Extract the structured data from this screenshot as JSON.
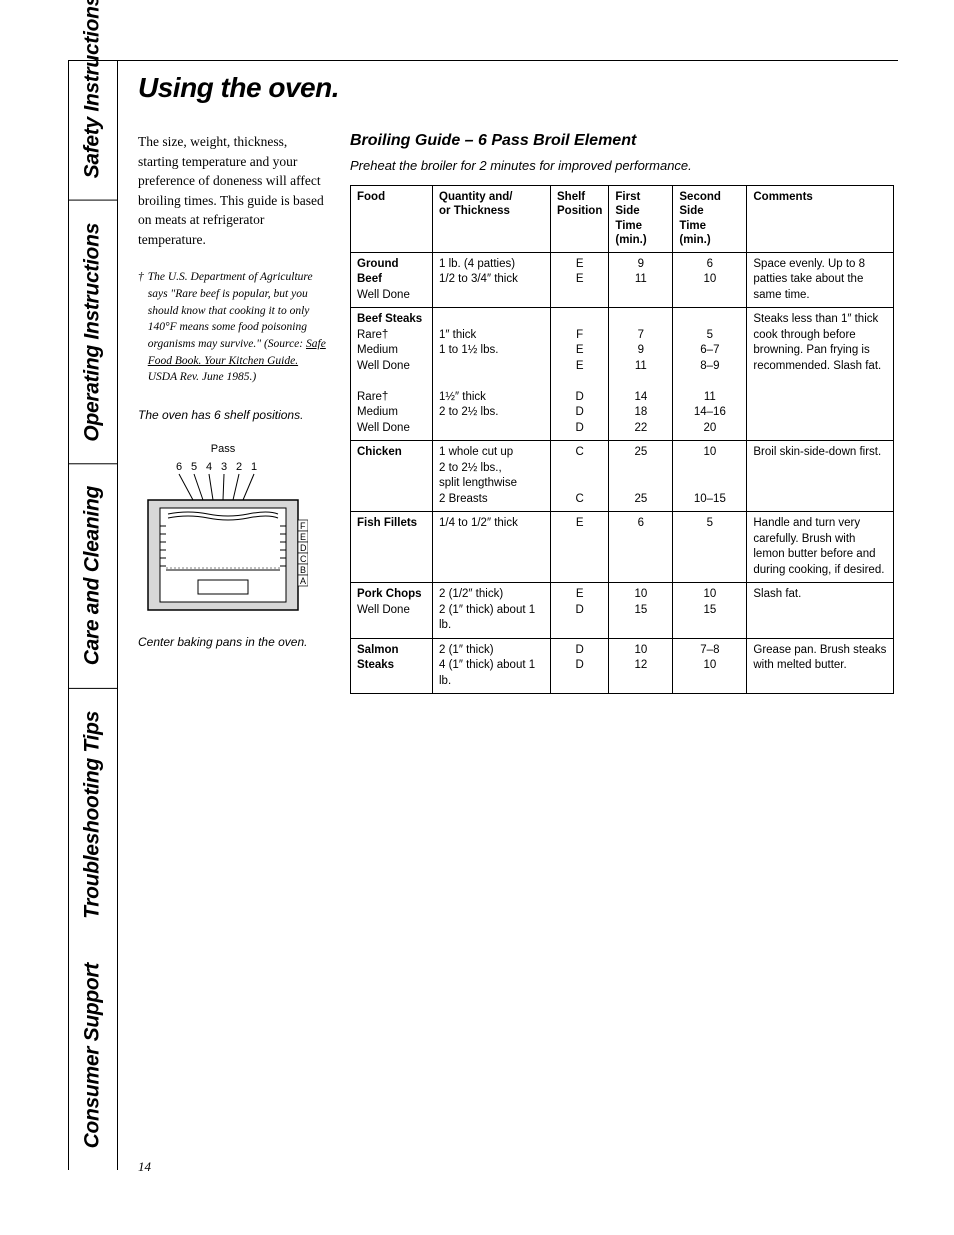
{
  "pageNumber": "14",
  "sideTabs": [
    "Consumer Support",
    "Troubleshooting Tips",
    "Care and Cleaning",
    "Operating Instructions",
    "Safety Instructions"
  ],
  "pageTitle": "Using the oven.",
  "leftColumn": {
    "intro": "The size, weight, thickness, starting temperature and your preference of doneness will affect broiling times. This guide is based on meats at refrigerator temperature.",
    "footnoteDagger": "†",
    "footnotePrefix": "The U.S. Department of Agriculture says \"Rare beef is popular, but you should know that cooking it to only 140°F means some food poisoning organisms may survive.\" (Source: ",
    "footnoteUnderlined": "Safe Food Book. Your Kitchen Guide.",
    "footnoteSuffix": " USDA Rev. June 1985.)",
    "caption1": "The oven has 6 shelf positions.",
    "diagramLabel": "Pass",
    "diagramNumbers": [
      "6",
      "5",
      "4",
      "3",
      "2",
      "1"
    ],
    "caption2": "Center baking pans in the oven."
  },
  "broilSection": {
    "title": "Broiling Guide – 6 Pass Broil Element",
    "subtitle": "Preheat the broiler for 2 minutes for improved performance.",
    "headers": {
      "food": "Food",
      "qty": "Quantity and/\nor Thickness",
      "shelf": "Shelf\nPosition",
      "first": "First Side\nTime (min.)",
      "second": "Second Side\nTime (min.)",
      "comments": "Comments"
    },
    "rows": [
      {
        "food": "<span class='bold-line'>Ground Beef</span>\nWell Done",
        "qty": "1 lb. (4 patties)\n1/2 to 3/4″ thick",
        "shelf": "E\nE",
        "first": "9\n11",
        "second": "6\n10",
        "comments": "Space evenly. Up to 8 patties take about the same time."
      },
      {
        "food": "<span class='bold-line'>Beef Steaks</span>\nRare†\nMedium\nWell Done\n\nRare†\nMedium\nWell Done",
        "qty": "\n1″ thick\n1 to 1½ lbs.\n\n\n1½″ thick\n2 to 2½ lbs.",
        "shelf": "\nF\nE\nE\n\nD\nD\nD",
        "first": "\n7\n9\n11\n\n14\n18\n22",
        "second": "\n5\n6–7\n8–9\n\n11\n14–16\n20",
        "comments": "Steaks less than 1″ thick cook through before browning. Pan frying is recommended. Slash fat."
      },
      {
        "food": "<span class='bold-line'>Chicken</span>",
        "qty": "1 whole cut up\n2 to 2½ lbs.,\nsplit lengthwise\n2 Breasts",
        "shelf": "C\n\n\nC",
        "first": "25\n\n\n25",
        "second": "10\n\n\n10–15",
        "comments": "Broil skin-side-down first."
      },
      {
        "food": "<span class='bold-line'>Fish Fillets</span>",
        "qty": "1/4 to 1/2″ thick",
        "shelf": "E",
        "first": "6",
        "second": "5",
        "comments": "Handle and turn very carefully. Brush with lemon butter before and during cooking, if desired."
      },
      {
        "food": "<span class='bold-line'>Pork Chops</span>\nWell Done",
        "qty": "2 (1/2″ thick)\n2 (1″ thick) about 1 lb.",
        "shelf": "E\nD",
        "first": "10\n15",
        "second": "10\n15",
        "comments": "Slash fat."
      },
      {
        "food": "<span class='bold-line'>Salmon Steaks</span>",
        "qty": "2 (1″ thick)\n4 (1″ thick) about 1 lb.",
        "shelf": "D\nD",
        "first": "10\n12",
        "second": "7–8\n10",
        "comments": "Grease pan. Brush steaks with melted butter."
      }
    ]
  }
}
